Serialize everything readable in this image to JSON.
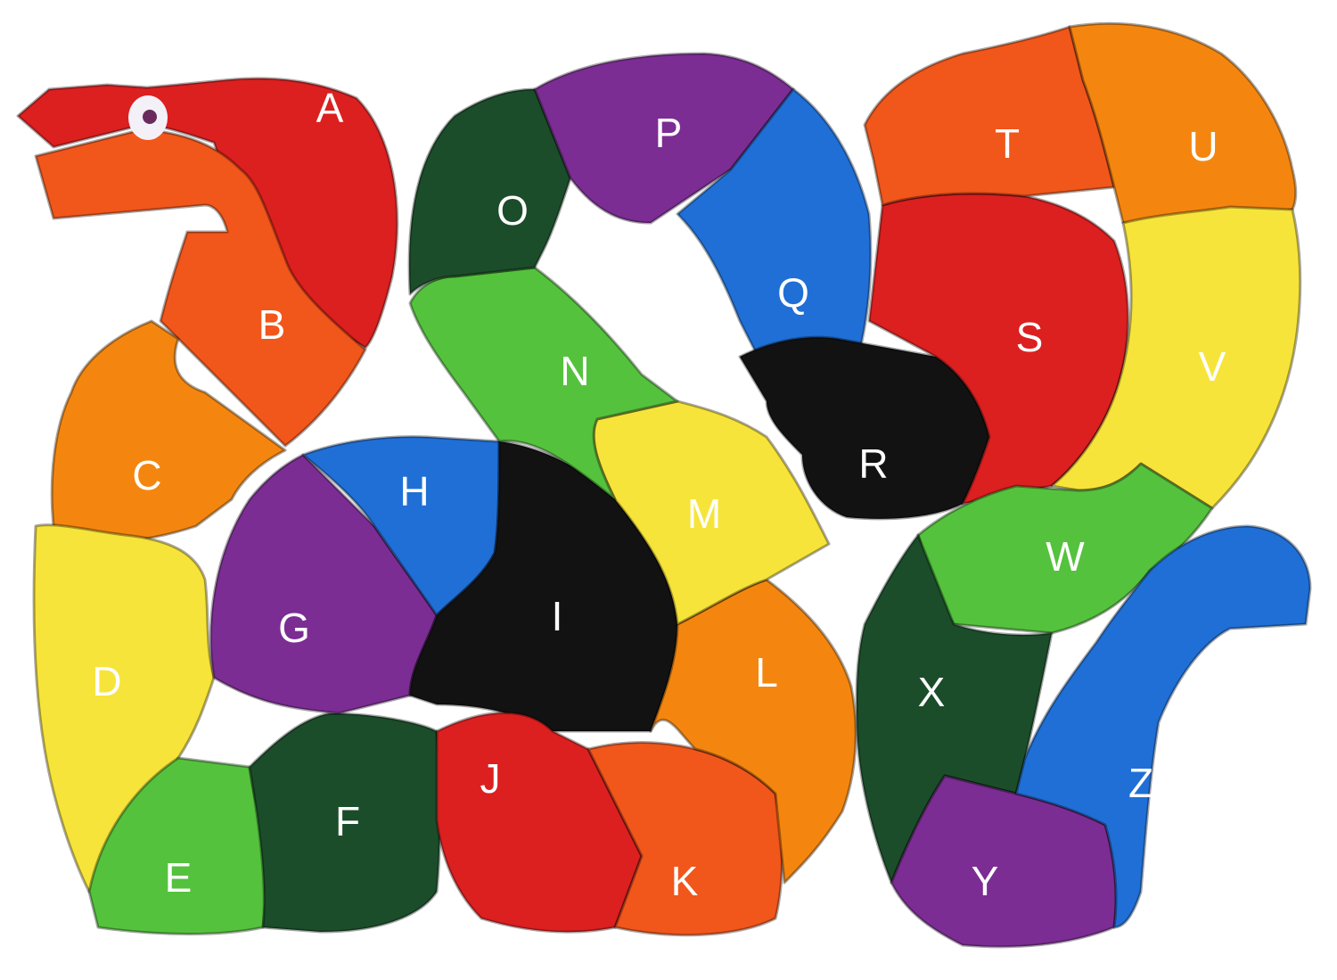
{
  "pieces": [
    {
      "letter": "A",
      "color": "#dc1f1f",
      "text_color": "#ffffff"
    },
    {
      "letter": "B",
      "color": "#f1561b",
      "text_color": "#ffffff"
    },
    {
      "letter": "C",
      "color": "#f4860f",
      "text_color": "#ffffff"
    },
    {
      "letter": "D",
      "color": "#f7e43a",
      "text_color": "#ffffff"
    },
    {
      "letter": "E",
      "color": "#54c23d",
      "text_color": "#ffffff"
    },
    {
      "letter": "F",
      "color": "#1b4d2a",
      "text_color": "#ffffff"
    },
    {
      "letter": "G",
      "color": "#7b2d93",
      "text_color": "#ffffff"
    },
    {
      "letter": "H",
      "color": "#1f6fd6",
      "text_color": "#ffffff"
    },
    {
      "letter": "I",
      "color": "#121212",
      "text_color": "#ffffff"
    },
    {
      "letter": "J",
      "color": "#dc1f1f",
      "text_color": "#ffffff"
    },
    {
      "letter": "K",
      "color": "#f1561b",
      "text_color": "#ffffff"
    },
    {
      "letter": "L",
      "color": "#f4860f",
      "text_color": "#ffffff"
    },
    {
      "letter": "M",
      "color": "#f7e43a",
      "text_color": "#ffffff"
    },
    {
      "letter": "N",
      "color": "#54c23d",
      "text_color": "#ffffff"
    },
    {
      "letter": "O",
      "color": "#1b4d2a",
      "text_color": "#ffffff"
    },
    {
      "letter": "P",
      "color": "#7b2d93",
      "text_color": "#ffffff"
    },
    {
      "letter": "Q",
      "color": "#1f6fd6",
      "text_color": "#ffffff"
    },
    {
      "letter": "R",
      "color": "#121212",
      "text_color": "#ffffff"
    },
    {
      "letter": "S",
      "color": "#dc1f1f",
      "text_color": "#ffffff"
    },
    {
      "letter": "T",
      "color": "#f1561b",
      "text_color": "#ffffff"
    },
    {
      "letter": "U",
      "color": "#f4860f",
      "text_color": "#ffffff"
    },
    {
      "letter": "V",
      "color": "#f7e43a",
      "text_color": "#ffffff"
    },
    {
      "letter": "W",
      "color": "#54c23d",
      "text_color": "#ffffff"
    },
    {
      "letter": "X",
      "color": "#1b4d2a",
      "text_color": "#ffffff"
    },
    {
      "letter": "Y",
      "color": "#7b2d93",
      "text_color": "#ffffff"
    },
    {
      "letter": "Z",
      "color": "#1f6fd6",
      "text_color": "#ffffff"
    }
  ],
  "colors": {
    "background": "#ffffff",
    "eye_white": "#f4f0f8",
    "eye_pupil": "#6b2a5c"
  }
}
